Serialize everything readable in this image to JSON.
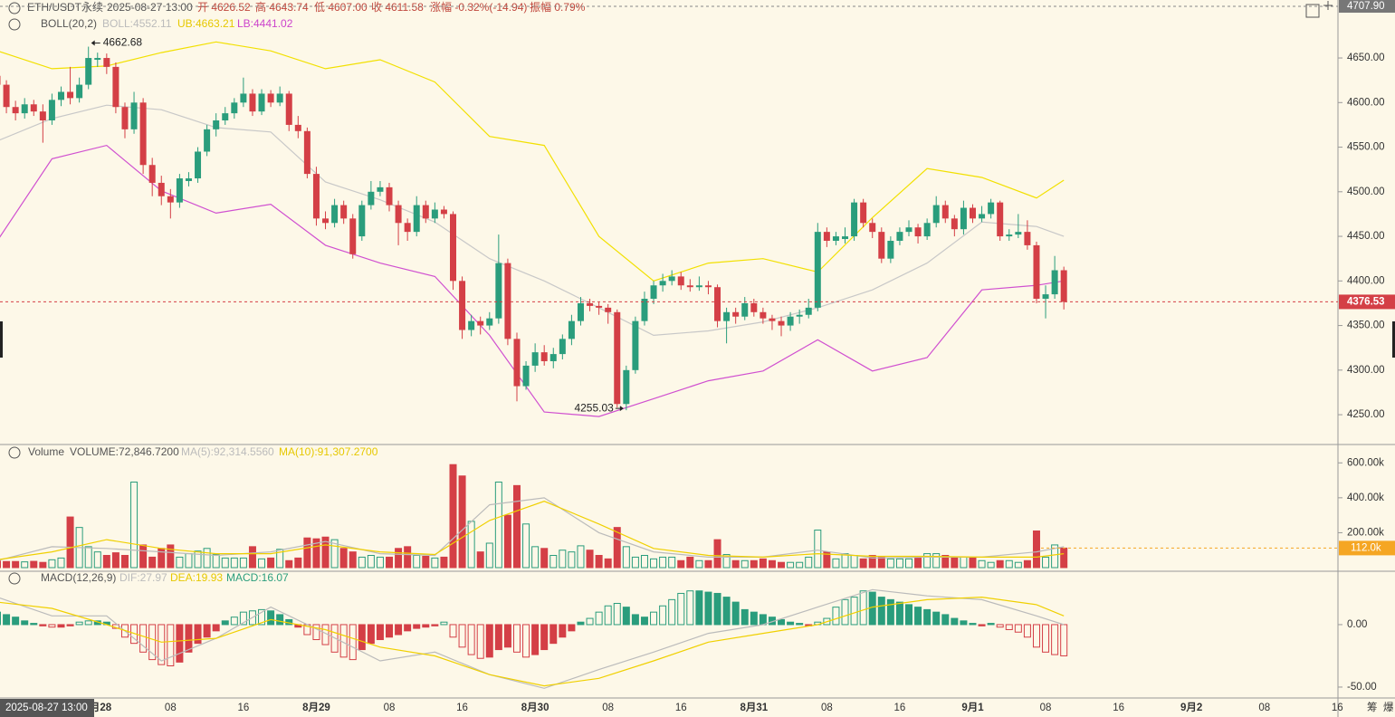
{
  "header": {
    "symbol": "ETH/USDT永续",
    "time": "2025-08-27 13:00",
    "open": "开 4626.52",
    "high": "高 4643.74",
    "low": "低 4607.00",
    "close": "收 4611.58",
    "change": "涨幅 -0.32%(-14.94)",
    "amplitude": "振幅 0.79%",
    "side_a": "筹",
    "side_b": "爆"
  },
  "chart_data": {
    "type": "candlestick",
    "colors": {
      "up": "#2a9d7c",
      "down": "#d43f46"
    },
    "ylim": [
      4217.6,
      4707.9
    ],
    "yticks": [
      {
        "value": 4250,
        "label": "4250.00"
      },
      {
        "value": 4300,
        "label": "4300.00"
      },
      {
        "value": 4350,
        "label": "4350.00"
      },
      {
        "value": 4400,
        "label": "4400.00"
      },
      {
        "value": 4450,
        "label": "4450.00"
      },
      {
        "value": 4500,
        "label": "4500.00"
      },
      {
        "value": 4550,
        "label": "4550.00"
      },
      {
        "value": 4600,
        "label": "4600.00"
      },
      {
        "value": 4650,
        "label": "4650.00"
      }
    ],
    "top_marker": {
      "value": 4707.9,
      "label": "4707.90"
    },
    "last_price": {
      "value": 4376.53,
      "label": "4376.53"
    },
    "high_label": "4662.68",
    "low_label": "4255.03",
    "x_labels": [
      {
        "index": 11,
        "label": "8月28"
      },
      {
        "index": 19,
        "label": "08"
      },
      {
        "index": 27,
        "label": "16"
      },
      {
        "index": 35,
        "label": "8月29"
      },
      {
        "index": 43,
        "label": "08"
      },
      {
        "index": 51,
        "label": "16"
      },
      {
        "index": 59,
        "label": "8月30"
      },
      {
        "index": 67,
        "label": "08"
      },
      {
        "index": 75,
        "label": "16"
      },
      {
        "index": 83,
        "label": "8月31"
      },
      {
        "index": 91,
        "label": "08"
      },
      {
        "index": 99,
        "label": "16"
      },
      {
        "index": 107,
        "label": "9月1"
      },
      {
        "index": 115,
        "label": "08"
      },
      {
        "index": 123,
        "label": "16"
      },
      {
        "index": 131,
        "label": "9月2"
      },
      {
        "index": 139,
        "label": "08"
      },
      {
        "index": 147,
        "label": "16"
      }
    ],
    "candles": [
      [
        4630,
        4638,
        4612,
        4620
      ],
      [
        4620,
        4625,
        4588,
        4595
      ],
      [
        4595,
        4602,
        4580,
        4588
      ],
      [
        4588,
        4605,
        4582,
        4598
      ],
      [
        4598,
        4603,
        4585,
        4590
      ],
      [
        4590,
        4598,
        4555,
        4580
      ],
      [
        4580,
        4610,
        4575,
        4603
      ],
      [
        4603,
        4618,
        4596,
        4612
      ],
      [
        4612,
        4640,
        4598,
        4605
      ],
      [
        4605,
        4628,
        4600,
        4620
      ],
      [
        4620,
        4662.68,
        4615,
        4650
      ],
      [
        4648,
        4656,
        4640,
        4650
      ],
      [
        4650,
        4655,
        4632,
        4640
      ],
      [
        4640,
        4645,
        4588,
        4595
      ],
      [
        4595,
        4600,
        4560,
        4570
      ],
      [
        4570,
        4612,
        4565,
        4600
      ],
      [
        4600,
        4605,
        4520,
        4530
      ],
      [
        4530,
        4538,
        4495,
        4510
      ],
      [
        4510,
        4518,
        4485,
        4495
      ],
      [
        4495,
        4503,
        4470,
        4488
      ],
      [
        4488,
        4520,
        4482,
        4515
      ],
      [
        4512,
        4522,
        4506,
        4515
      ],
      [
        4515,
        4550,
        4510,
        4545
      ],
      [
        4545,
        4575,
        4540,
        4570
      ],
      [
        4570,
        4588,
        4562,
        4580
      ],
      [
        4580,
        4595,
        4575,
        4588
      ],
      [
        4588,
        4605,
        4582,
        4600
      ],
      [
        4600,
        4628,
        4595,
        4610
      ],
      [
        4610,
        4615,
        4585,
        4590
      ],
      [
        4590,
        4615,
        4586,
        4610
      ],
      [
        4610,
        4614,
        4595,
        4600
      ],
      [
        4600,
        4618,
        4596,
        4610
      ],
      [
        4610,
        4613,
        4568,
        4575
      ],
      [
        4575,
        4585,
        4560,
        4568
      ],
      [
        4568,
        4572,
        4515,
        4520
      ],
      [
        4520,
        4528,
        4462,
        4470
      ],
      [
        4470,
        4478,
        4458,
        4465
      ],
      [
        4465,
        4492,
        4460,
        4485
      ],
      [
        4485,
        4490,
        4464,
        4470
      ],
      [
        4470,
        4475,
        4425,
        4430
      ],
      [
        4450,
        4490,
        4445,
        4485
      ],
      [
        4485,
        4512,
        4480,
        4500
      ],
      [
        4500,
        4512,
        4495,
        4505
      ],
      [
        4505,
        4510,
        4478,
        4485
      ],
      [
        4485,
        4490,
        4440,
        4465
      ],
      [
        4465,
        4470,
        4445,
        4455
      ],
      [
        4455,
        4495,
        4450,
        4485
      ],
      [
        4485,
        4490,
        4465,
        4470
      ],
      [
        4470,
        4488,
        4465,
        4480
      ],
      [
        4480,
        4484,
        4470,
        4475
      ],
      [
        4475,
        4478,
        4390,
        4400
      ],
      [
        4400,
        4405,
        4335,
        4345
      ],
      [
        4345,
        4362,
        4338,
        4355
      ],
      [
        4355,
        4360,
        4340,
        4350
      ],
      [
        4350,
        4365,
        4345,
        4358
      ],
      [
        4358,
        4452,
        4352,
        4420
      ],
      [
        4420,
        4425,
        4328,
        4335
      ],
      [
        4335,
        4342,
        4265,
        4282
      ],
      [
        4282,
        4310,
        4278,
        4305
      ],
      [
        4305,
        4330,
        4298,
        4320
      ],
      [
        4320,
        4328,
        4305,
        4310
      ],
      [
        4310,
        4325,
        4302,
        4318
      ],
      [
        4318,
        4340,
        4312,
        4335
      ],
      [
        4335,
        4362,
        4328,
        4355
      ],
      [
        4355,
        4382,
        4350,
        4375
      ],
      [
        4375,
        4380,
        4366,
        4372
      ],
      [
        4372,
        4376,
        4362,
        4370
      ],
      [
        4370,
        4374,
        4352,
        4365
      ],
      [
        4365,
        4368,
        4258,
        4262
      ],
      [
        4262,
        4305,
        4255.03,
        4300
      ],
      [
        4300,
        4360,
        4296,
        4355
      ],
      [
        4355,
        4388,
        4350,
        4380
      ],
      [
        4380,
        4400,
        4374,
        4395
      ],
      [
        4395,
        4408,
        4388,
        4400
      ],
      [
        4400,
        4412,
        4395,
        4405
      ],
      [
        4405,
        4410,
        4390,
        4395
      ],
      [
        4395,
        4402,
        4388,
        4393
      ],
      [
        4393,
        4405,
        4389,
        4395
      ],
      [
        4395,
        4400,
        4385,
        4393
      ],
      [
        4393,
        4396,
        4348,
        4355
      ],
      [
        4355,
        4370,
        4330,
        4365
      ],
      [
        4365,
        4370,
        4352,
        4360
      ],
      [
        4360,
        4382,
        4356,
        4375
      ],
      [
        4375,
        4380,
        4360,
        4365
      ],
      [
        4365,
        4370,
        4352,
        4358
      ],
      [
        4358,
        4362,
        4345,
        4355
      ],
      [
        4355,
        4360,
        4338,
        4350
      ],
      [
        4350,
        4365,
        4344,
        4360
      ],
      [
        4360,
        4368,
        4352,
        4362
      ],
      [
        4362,
        4380,
        4358,
        4370
      ],
      [
        4370,
        4465,
        4366,
        4455
      ],
      [
        4455,
        4460,
        4438,
        4445
      ],
      [
        4445,
        4455,
        4440,
        4450
      ],
      [
        4447,
        4460,
        4442,
        4450
      ],
      [
        4450,
        4492,
        4445,
        4488
      ],
      [
        4488,
        4492,
        4460,
        4465
      ],
      [
        4465,
        4470,
        4448,
        4455
      ],
      [
        4455,
        4460,
        4420,
        4425
      ],
      [
        4425,
        4450,
        4420,
        4445
      ],
      [
        4445,
        4460,
        4440,
        4455
      ],
      [
        4455,
        4468,
        4450,
        4460
      ],
      [
        4460,
        4464,
        4442,
        4450
      ],
      [
        4450,
        4470,
        4446,
        4465
      ],
      [
        4465,
        4495,
        4460,
        4485
      ],
      [
        4485,
        4490,
        4465,
        4470
      ],
      [
        4470,
        4474,
        4450,
        4458
      ],
      [
        4458,
        4490,
        4452,
        4482
      ],
      [
        4482,
        4486,
        4465,
        4470
      ],
      [
        4470,
        4484,
        4466,
        4475
      ],
      [
        4475,
        4492,
        4470,
        4488
      ],
      [
        4488,
        4490,
        4445,
        4450
      ],
      [
        4450,
        4458,
        4445,
        4452
      ],
      [
        4452,
        4475,
        4448,
        4455
      ],
      [
        4455,
        4468,
        4435,
        4440
      ],
      [
        4440,
        4444,
        4375,
        4380
      ],
      [
        4380,
        4395,
        4358,
        4385
      ],
      [
        4385,
        4428,
        4380,
        4412
      ],
      [
        4412,
        4416,
        4368,
        4376.53
      ]
    ],
    "boll": {
      "title": "BOLL(20,2)",
      "legend": [
        "BOLL:4552.11",
        "UB:4663.21",
        "LB:4441.02"
      ],
      "legend_colors": [
        "#bbbbbb",
        "#e6c800",
        "#cc44cc"
      ],
      "index": [
        0,
        6,
        12,
        18,
        24,
        30,
        36,
        42,
        48,
        54,
        60,
        66,
        72,
        78,
        84,
        90,
        96,
        102,
        108,
        114,
        117
      ],
      "series": [
        {
          "color": "#c8c8c8",
          "values": [
            4557,
            4582,
            4597,
            4592,
            4572,
            4567,
            4511,
            4491,
            4466,
            4425,
            4400,
            4370,
            4339,
            4344,
            4354,
            4370,
            4390,
            4420,
            4466,
            4461,
            4450
          ]
        },
        {
          "color": "#f2e000",
          "values": [
            4658,
            4638,
            4641,
            4656,
            4668,
            4658,
            4638,
            4648,
            4623,
            4562,
            4552,
            4450,
            4400,
            4420,
            4425,
            4410,
            4471,
            4526,
            4516,
            4493,
            4513
          ]
        },
        {
          "color": "#d050d0",
          "values": [
            4445,
            4537,
            4552,
            4501,
            4476,
            4486,
            4440,
            4420,
            4405,
            4339,
            4253,
            4248,
            4268,
            4288,
            4299,
            4334,
            4299,
            4314,
            4390,
            4395,
            4400
          ]
        }
      ]
    },
    "volume": {
      "title": "Volume",
      "legend": [
        "VOLUME:72,846.7200",
        "MA(5):92,314.5560",
        "MA(10):91,307.2700"
      ],
      "legend_colors": [
        "#555555",
        "#bbbbbb",
        "#e6c800"
      ],
      "ylim": [
        0,
        700
      ],
      "yticks": [
        {
          "value": 200,
          "label": "200.00k"
        },
        {
          "value": 400,
          "label": "400.00k"
        },
        {
          "value": 600,
          "label": "600.00k"
        }
      ],
      "last": {
        "value": 112,
        "label": "112.0k"
      },
      "values": [
        38,
        35,
        35,
        33,
        36,
        30,
        45,
        55,
        290,
        230,
        120,
        90,
        70,
        85,
        70,
        490,
        130,
        60,
        110,
        130,
        60,
        80,
        95,
        110,
        75,
        55,
        55,
        55,
        120,
        50,
        55,
        105,
        40,
        55,
        170,
        165,
        175,
        160,
        110,
        90,
        60,
        70,
        60,
        60,
        110,
        120,
        70,
        65,
        55,
        60,
        590,
        525,
        265,
        90,
        140,
        490,
        300,
        470,
        250,
        120,
        110,
        70,
        100,
        90,
        125,
        100,
        70,
        50,
        230,
        120,
        60,
        70,
        50,
        60,
        60,
        40,
        60,
        40,
        40,
        160,
        75,
        40,
        40,
        40,
        50,
        40,
        30,
        30,
        30,
        60,
        215,
        90,
        50,
        80,
        70,
        50,
        70,
        60,
        50,
        50,
        50,
        60,
        80,
        80,
        70,
        60,
        60,
        60,
        40,
        30,
        40,
        40,
        30,
        40,
        210,
        60,
        130,
        112
      ],
      "ma_index": [
        0,
        6,
        12,
        18,
        24,
        30,
        36,
        42,
        48,
        54,
        60,
        66,
        72,
        78,
        84,
        90,
        96,
        102,
        108,
        114,
        117
      ],
      "ma": [
        {
          "color": "#bbbbbb",
          "values": [
            40,
            120,
            110,
            90,
            70,
            90,
            150,
            80,
            70,
            360,
            400,
            200,
            90,
            60,
            60,
            100,
            55,
            60,
            60,
            90,
            120
          ]
        },
        {
          "color": "#f0d000",
          "values": [
            45,
            90,
            160,
            110,
            80,
            80,
            130,
            90,
            75,
            270,
            380,
            250,
            110,
            70,
            60,
            80,
            65,
            65,
            60,
            60,
            80
          ]
        }
      ]
    },
    "macd": {
      "title": "MACD(12,26,9)",
      "legend": [
        "DIF:27.97",
        "DEA:19.93",
        "MACD:16.07"
      ],
      "legend_colors": [
        "#bbbbbb",
        "#e6c800",
        "#2a9d7c"
      ],
      "ylim": [
        -58,
        42
      ],
      "yticks": [
        {
          "value": 0,
          "label": "0.00"
        },
        {
          "value": -50,
          "label": "-50.00"
        }
      ],
      "values": [
        10,
        8,
        6,
        3,
        1,
        -1,
        -2,
        -2,
        -1,
        2,
        3,
        3,
        2,
        -3,
        -10,
        -15,
        -22,
        -28,
        -32,
        -33,
        -30,
        -22,
        -15,
        -10,
        -5,
        3,
        6,
        10,
        11,
        12,
        11,
        8,
        4,
        -2,
        -8,
        -12,
        -16,
        -22,
        -26,
        -28,
        -20,
        -15,
        -12,
        -10,
        -8,
        -5,
        -3,
        -2,
        -1,
        2,
        -10,
        -18,
        -24,
        -27,
        -26,
        -20,
        -18,
        -22,
        -26,
        -24,
        -20,
        -15,
        -10,
        -5,
        2,
        5,
        10,
        15,
        17,
        14,
        8,
        6,
        10,
        15,
        20,
        25,
        27,
        27,
        26,
        25,
        22,
        18,
        12,
        10,
        8,
        6,
        4,
        2,
        1,
        -1,
        2,
        5,
        14,
        20,
        22,
        27,
        26,
        22,
        20,
        18,
        16,
        14,
        12,
        10,
        8,
        5,
        3,
        1,
        -1,
        1,
        -2,
        -4,
        -6,
        -10,
        -18,
        -22,
        -24,
        -25
      ],
      "line_index": [
        0,
        6,
        12,
        18,
        24,
        30,
        36,
        42,
        48,
        54,
        60,
        66,
        72,
        78,
        84,
        90,
        96,
        102,
        108,
        114,
        117
      ],
      "lines": [
        {
          "color": "#bbbbbb",
          "values": [
            22,
            7,
            7,
            -29,
            -11,
            14,
            -7,
            -29,
            -22,
            -40,
            -51,
            -36,
            -22,
            -7,
            0,
            14,
            28,
            23,
            20,
            7,
            0
          ]
        },
        {
          "color": "#f0d000",
          "values": [
            18,
            13,
            0,
            -14,
            -11,
            4,
            -4,
            -18,
            -25,
            -40,
            -49,
            -43,
            -29,
            -14,
            -7,
            0,
            14,
            20,
            22,
            16,
            7
          ]
        }
      ]
    }
  }
}
